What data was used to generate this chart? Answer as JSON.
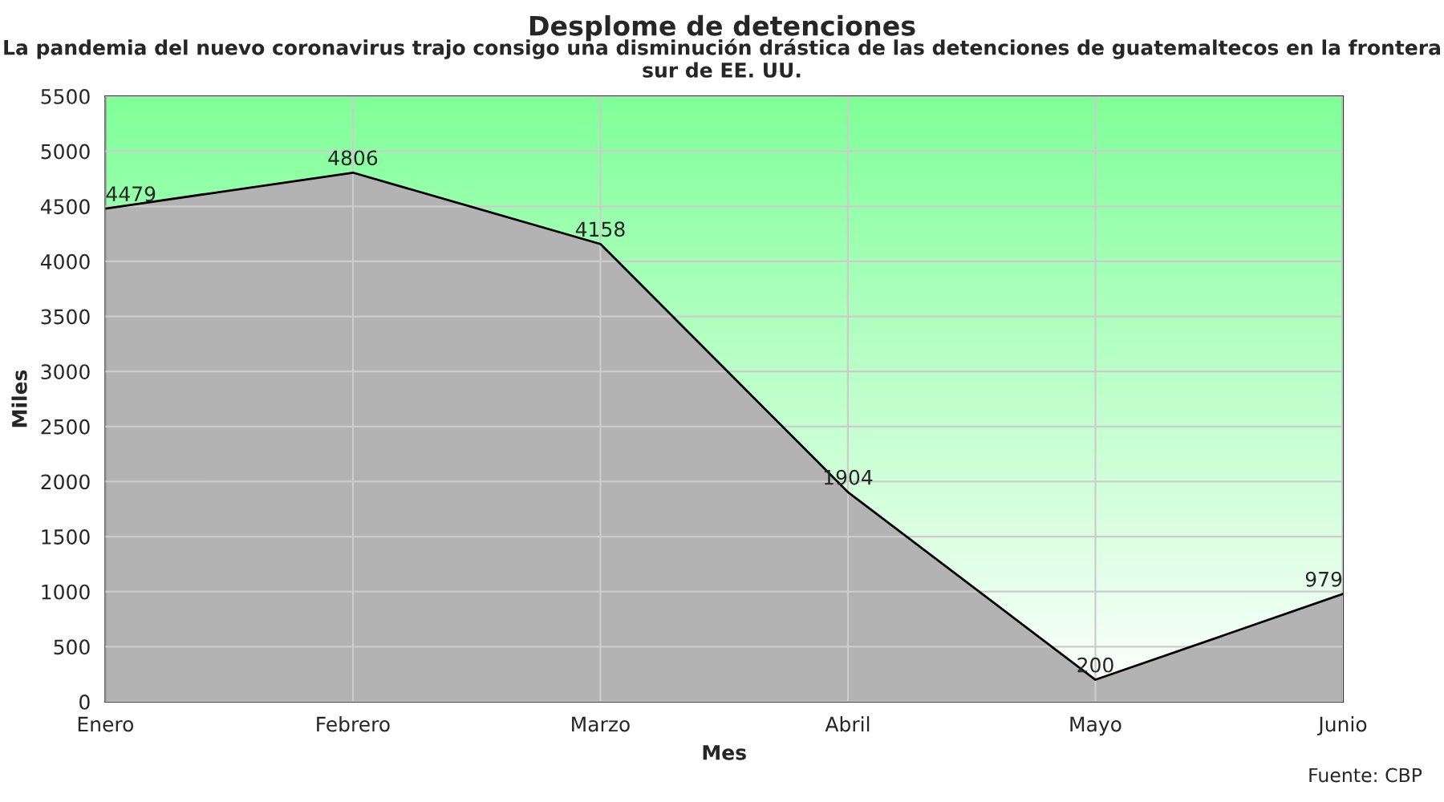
{
  "chart_data": {
    "type": "area",
    "title": "Desplome de detenciones",
    "subtitle": "La pandemia del nuevo coronavirus trajo consigo una disminución drástica de las detenciones de guatemaltecos en la frontera sur de EE. UU.",
    "xlabel": "Mes",
    "ylabel": "Miles",
    "categories": [
      "Enero",
      "Febrero",
      "Marzo",
      "Abril",
      "Mayo",
      "Junio"
    ],
    "series": [
      {
        "color": "#b3b3b3",
        "values": [
          4479,
          4806,
          4158,
          1904,
          200,
          979
        ]
      }
    ],
    "ylim": [
      0,
      5500
    ],
    "yticks": [
      0,
      500,
      1000,
      1500,
      2000,
      2500,
      3000,
      3500,
      4000,
      4500,
      5000,
      5500
    ],
    "grid": true,
    "data_labels": true,
    "annotations": [
      "Fuente: CBP"
    ]
  }
}
